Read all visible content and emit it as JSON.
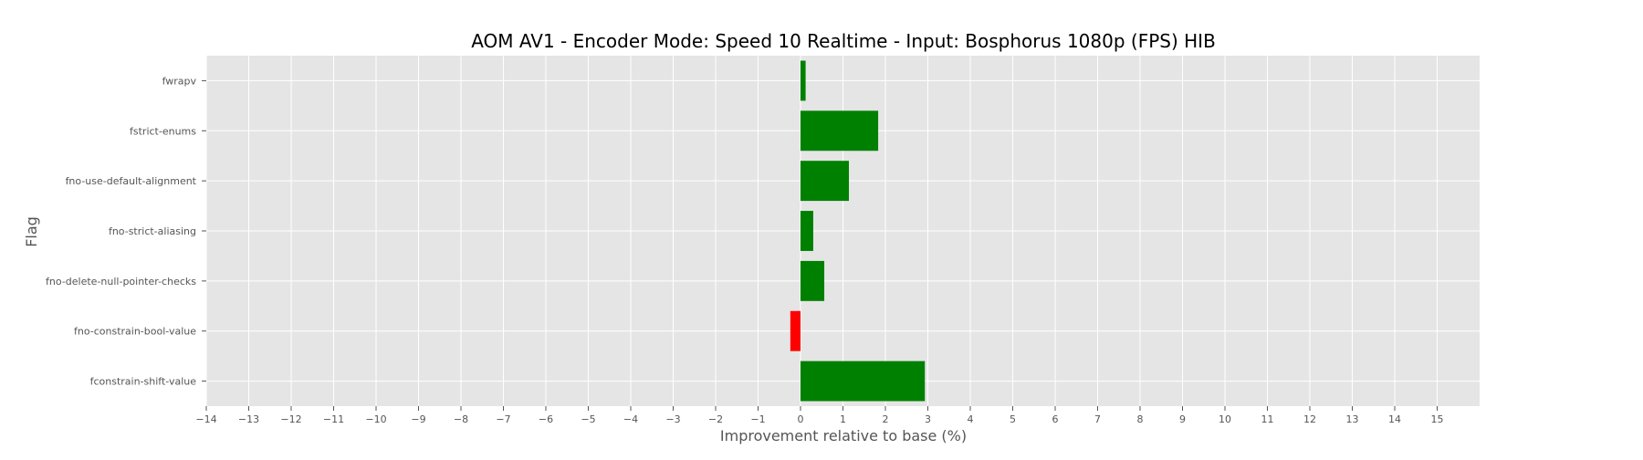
{
  "chart_data": {
    "type": "bar",
    "orientation": "horizontal",
    "title": "AOM AV1 - Encoder Mode: Speed 10 Realtime - Input: Bosphorus 1080p (FPS) HIB",
    "xlabel": "Improvement relative to base (%)",
    "ylabel": "Flag",
    "categories": [
      "fwrapv",
      "fstrict-enums",
      "fno-use-default-alignment",
      "fno-strict-aliasing",
      "fno-delete-null-pointer-checks",
      "fno-constrain-bool-value",
      "fconstrain-shift-value"
    ],
    "values": [
      0.12,
      1.83,
      1.14,
      0.3,
      0.56,
      -0.24,
      2.93
    ],
    "xlim": [
      -14,
      16
    ],
    "xticks": [
      -14,
      -13,
      -12,
      -11,
      -10,
      -9,
      -8,
      -7,
      -6,
      -5,
      -4,
      -3,
      -2,
      -1,
      0,
      1,
      2,
      3,
      4,
      5,
      6,
      7,
      8,
      9,
      10,
      11,
      12,
      13,
      14,
      15
    ],
    "grid": true,
    "colors": {
      "positive": "#008000",
      "negative": "#ff0000",
      "background": "#e5e5e5",
      "grid": "#ffffff",
      "text": "#555555",
      "title": "#000000"
    }
  }
}
